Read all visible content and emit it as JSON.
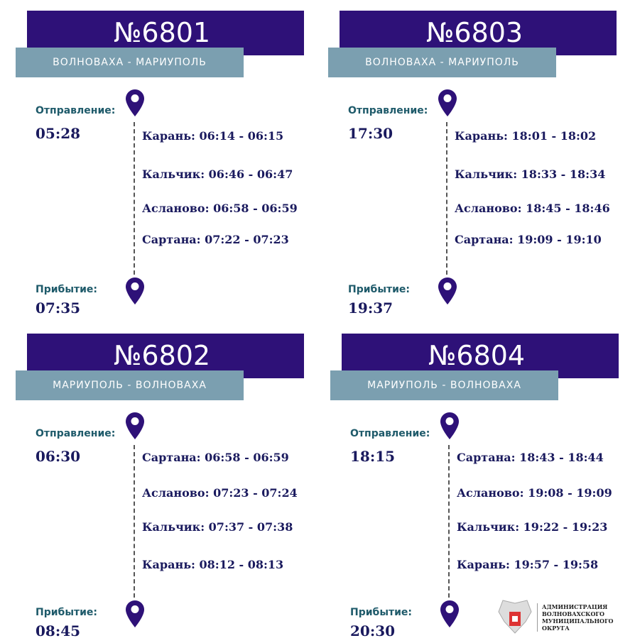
{
  "colors": {
    "header": "#2e1178",
    "route_band": "#7b9fb0",
    "label": "#1e5a6a",
    "time": "#1a1a5e",
    "pin": "#2e1178"
  },
  "labels": {
    "departure": "Отправление:",
    "arrival": "Прибытие:"
  },
  "trains": [
    {
      "number": "№6801",
      "route": "ВОЛНОВАХА -    МАРИУПОЛЬ",
      "departure": "05:28",
      "arrival": "07:35",
      "stops": [
        "Карань: 06:14 - 06:15",
        "Кальчик: 06:46 - 06:47",
        "Асланово: 06:58 - 06:59",
        "Сартана: 07:22 - 07:23"
      ]
    },
    {
      "number": "№6803",
      "route": "ВОЛНОВАХА -    МАРИУПОЛЬ",
      "departure": "17:30",
      "arrival": "19:37",
      "stops": [
        "Карань: 18:01 - 18:02",
        "Кальчик: 18:33 - 18:34",
        "Асланово: 18:45 - 18:46",
        "Сартана: 19:09 - 19:10"
      ]
    },
    {
      "number": "№6802",
      "route": "МАРИУПОЛЬ - ВОЛНОВАХА",
      "departure": "06:30",
      "arrival": "08:45",
      "stops": [
        "Сартана: 06:58 - 06:59",
        "Асланово: 07:23 - 07:24",
        "Кальчик: 07:37 - 07:38",
        "Карань: 08:12 - 08:13"
      ]
    },
    {
      "number": "№6804",
      "route": "МАРИУПОЛЬ - ВОЛНОВАХА",
      "departure": "18:15",
      "arrival": "20:30",
      "stops": [
        "Сартана: 18:43 - 18:44",
        "Асланово: 19:08 - 19:09",
        "Кальчик: 19:22 - 19:23",
        "Карань: 19:57 - 19:58"
      ]
    }
  ],
  "logo": {
    "lines": [
      "АДМИНИСТРАЦИЯ",
      "ВОЛНОВАХСКОГО",
      "МУНИЦИПАЛЬНОГО",
      "ОКРУГА"
    ]
  }
}
